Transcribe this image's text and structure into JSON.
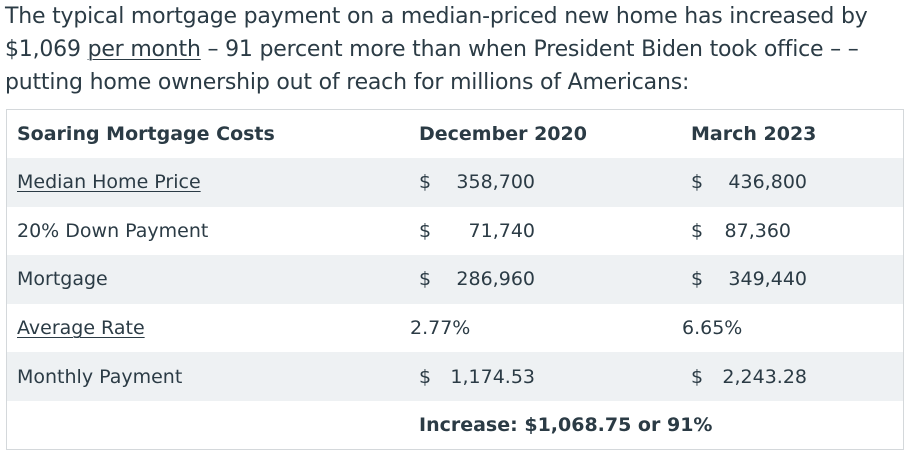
{
  "intro": {
    "text_before_link": "The typical mortgage payment on a median-priced new home has increased by $1,069 ",
    "link_text": "per month",
    "text_after_link": " – 91 percent more than when President Biden took office – – putting home ownership out of reach for millions of Americans:"
  },
  "table": {
    "headers": [
      "Soaring Mortgage Costs",
      "December 2020",
      "March 2023"
    ],
    "rows": [
      {
        "label": "Median Home Price",
        "label_is_link": true,
        "dec2020_currency": "$",
        "dec2020": "358,700",
        "mar2023_currency": "$",
        "mar2023": "436,800"
      },
      {
        "label": "20% Down Payment",
        "label_is_link": false,
        "dec2020_currency": "$",
        "dec2020": "71,740",
        "mar2023_currency": "$",
        "mar2023": "87,360"
      },
      {
        "label": "Mortgage",
        "label_is_link": false,
        "dec2020_currency": "$",
        "dec2020": "286,960",
        "mar2023_currency": "$",
        "mar2023": "349,440"
      },
      {
        "label": "Average Rate",
        "label_is_link": true,
        "dec2020": "2.77%",
        "mar2023": "6.65%"
      },
      {
        "label": "Monthly Payment",
        "label_is_link": false,
        "dec2020_currency": "$",
        "dec2020": "1,174.53",
        "mar2023_currency": "$",
        "mar2023": "2,243.28"
      }
    ],
    "summary": "Increase: $1,068.75 or 91%"
  },
  "colors": {
    "text": "#2b3b45",
    "stripe": "#eef1f3",
    "border": "#d4d8db"
  }
}
